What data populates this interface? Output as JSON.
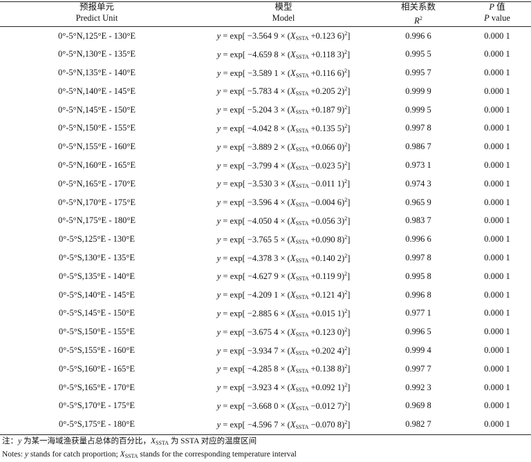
{
  "table": {
    "header": [
      [
        "预报单元",
        "Predict Unit"
      ],
      [
        "模型",
        "Model"
      ],
      [
        "相关系数",
        [
          "R",
          "2"
        ]
      ],
      [
        [
          "P",
          " 值"
        ],
        [
          "P",
          " value"
        ]
      ]
    ],
    "rows": [
      [
        "0°-5°N,125°E - 130°E",
        [
          "y",
          " = exp[ −3.564 9 × (",
          "X",
          "SSTA",
          " +0.123 6)",
          "2",
          "]"
        ],
        "0.996 6",
        "0.000 1"
      ],
      [
        "0°-5°N,130°E - 135°E",
        [
          "y",
          " = exp[ −4.659 8 × (",
          "X",
          "SSTA",
          " +0.118 3)",
          "2",
          "]"
        ],
        "0.995 5",
        "0.000 1"
      ],
      [
        "0°-5°N,135°E - 140°E",
        [
          "y",
          " = exp[ −3.589 1 × (",
          "X",
          "SSTA",
          " +0.116 6)",
          "2",
          "]"
        ],
        "0.995 7",
        "0.000 1"
      ],
      [
        "0°-5°N,140°E - 145°E",
        [
          "y",
          " = exp[ −5.783 4 × (",
          "X",
          "SSTA",
          " +0.205 2)",
          "2",
          "]"
        ],
        "0.999 9",
        "0.000 1"
      ],
      [
        "0°-5°N,145°E - 150°E",
        [
          "y",
          " = exp[ −5.204 3 × (",
          "X",
          "SSTA",
          " +0.187 9)",
          "2",
          "]"
        ],
        "0.999 5",
        "0.000 1"
      ],
      [
        "0°-5°N,150°E - 155°E",
        [
          "y",
          " = exp[ −4.042 8 × (",
          "X",
          "SSTA",
          " +0.135 5)",
          "2",
          "]"
        ],
        "0.997 8",
        "0.000 1"
      ],
      [
        "0°-5°N,155°E - 160°E",
        [
          "y",
          " = exp[ −3.889 2 × (",
          "X",
          "SSTA",
          " +0.066 0)",
          "2",
          "]"
        ],
        "0.986 7",
        "0.000 1"
      ],
      [
        "0°-5°N,160°E - 165°E",
        [
          "y",
          " = exp[ −3.799 4 × (",
          "X",
          "SSTA",
          " −0.023 5)",
          "2",
          "]"
        ],
        "0.973 1",
        "0.000 1"
      ],
      [
        "0°-5°N,165°E - 170°E",
        [
          "y",
          " = exp[ −3.530 3 × (",
          "X",
          "SSTA",
          " −0.011 1)",
          "2",
          "]"
        ],
        "0.974 3",
        "0.000 1"
      ],
      [
        "0°-5°N,170°E - 175°E",
        [
          "y",
          " = exp[ −3.596 4 × (",
          "X",
          "SSTA",
          " −0.004 6)",
          "2",
          "]"
        ],
        "0.965 9",
        "0.000 1"
      ],
      [
        "0°-5°N,175°E - 180°E",
        [
          "y",
          " = exp[ −4.050 4 × (",
          "X",
          "SSTA",
          " +0.056 3)",
          "2",
          "]"
        ],
        "0.983 7",
        "0.000 1"
      ],
      [
        "0°-5°S,125°E - 130°E",
        [
          "y",
          " = exp[ −3.765 5 × (",
          "X",
          "SSTA",
          " +0.090 8)",
          "2",
          "]"
        ],
        "0.996 6",
        "0.000 1"
      ],
      [
        "0°-5°S,130°E - 135°E",
        [
          "y",
          " = exp[ −4.378 3 × (",
          "X",
          "SSTA",
          " +0.140 2)",
          "2",
          "]"
        ],
        "0.997 8",
        "0.000 1"
      ],
      [
        "0°-5°S,135°E - 140°E",
        [
          "y",
          " = exp[ −4.627 9 × (",
          "X",
          "SSTA",
          " +0.119 9)",
          "2",
          "]"
        ],
        "0.995 8",
        "0.000 1"
      ],
      [
        "0°-5°S,140°E - 145°E",
        [
          "y",
          " = exp[ −4.209 1 × (",
          "X",
          "SSTA",
          " +0.121 4)",
          "2",
          "]"
        ],
        "0.996 8",
        "0.000 1"
      ],
      [
        "0°-5°S,145°E - 150°E",
        [
          "y",
          " = exp[ −2.885 6 × (",
          "X",
          "SSTA",
          " +0.015 1)",
          "2",
          "]"
        ],
        "0.977 1",
        "0.000 1"
      ],
      [
        "0°-5°S,150°E - 155°E",
        [
          "y",
          " = exp[ −3.675 4 × (",
          "X",
          "SSTA",
          " +0.123 0)",
          "2",
          "]"
        ],
        "0.996 5",
        "0.000 1"
      ],
      [
        "0°-5°S,155°E - 160°E",
        [
          "y",
          " = exp[ −3.934 7 × (",
          "X",
          "SSTA",
          " +0.202 4)",
          "2",
          "]"
        ],
        "0.999 4",
        "0.000 1"
      ],
      [
        "0°-5°S,160°E - 165°E",
        [
          "y",
          " = exp[ −4.285 8 × (",
          "X",
          "SSTA",
          " +0.138 8)",
          "2",
          "]"
        ],
        "0.997 7",
        "0.000 1"
      ],
      [
        "0°-5°S,165°E - 170°E",
        [
          "y",
          " = exp[ −3.923 4 × (",
          "X",
          "SSTA",
          " +0.092 1)",
          "2",
          "]"
        ],
        "0.992 3",
        "0.000 1"
      ],
      [
        "0°-5°S,170°E - 175°E",
        [
          "y",
          " = exp[ −3.668 0 × (",
          "X",
          "SSTA",
          " −0.012 7)",
          "2",
          "]"
        ],
        "0.969 8",
        "0.000 1"
      ],
      [
        "0°-5°S,175°E - 180°E",
        [
          "y",
          " = exp[ −4.596 7 × (",
          "X",
          "SSTA",
          " −0.070 8)",
          "2",
          "]"
        ],
        "0.982 7",
        "0.000 1"
      ]
    ]
  },
  "notes": [
    [
      "注：",
      "y",
      " 为某一海域渔获量占总体的百分比，",
      "X",
      "SSTA",
      " 为 SSTA 对应的温度区间"
    ],
    [
      "Notes: ",
      "y",
      " stands for catch proportion; ",
      "X",
      "SSTA",
      " stands for the corresponding temperature interval"
    ]
  ]
}
